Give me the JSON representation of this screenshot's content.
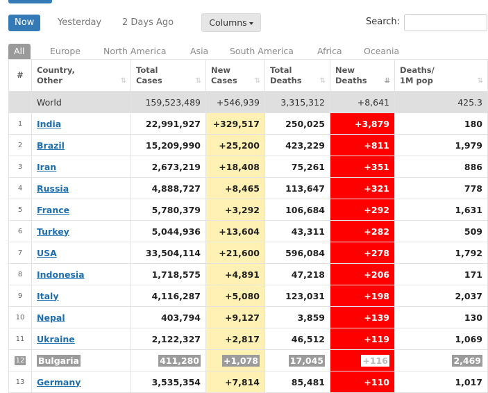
{
  "date_tabs": [
    "Now",
    "Yesterday",
    "2 Days Ago"
  ],
  "columns_button": "Columns",
  "search_label": "Search:",
  "search_value": "",
  "continent_tabs": [
    "All",
    "Europe",
    "North America",
    "Asia",
    "South America",
    "Africa",
    "Oceania"
  ],
  "headers": [
    "#",
    "Country,\nOther",
    "Total\nCases",
    "New\nCases",
    "Total\nDeaths",
    "New\nDeaths",
    "Deaths/\n1M pop"
  ],
  "world": {
    "name": "World",
    "total_cases": "159,523,489",
    "new_cases": "+546,939",
    "total_deaths": "3,315,312",
    "new_deaths": "+8,641",
    "deaths_per_1m": "425.3"
  },
  "rows": [
    {
      "rank": "1",
      "country": "India",
      "total_cases": "22,991,927",
      "new_cases": "+329,517",
      "total_deaths": "250,025",
      "new_deaths": "+3,879",
      "deaths_per_1m": "180"
    },
    {
      "rank": "2",
      "country": "Brazil",
      "total_cases": "15,209,990",
      "new_cases": "+25,200",
      "total_deaths": "423,229",
      "new_deaths": "+811",
      "deaths_per_1m": "1,979"
    },
    {
      "rank": "3",
      "country": "Iran",
      "total_cases": "2,673,219",
      "new_cases": "+18,408",
      "total_deaths": "75,261",
      "new_deaths": "+351",
      "deaths_per_1m": "886"
    },
    {
      "rank": "4",
      "country": "Russia",
      "total_cases": "4,888,727",
      "new_cases": "+8,465",
      "total_deaths": "113,647",
      "new_deaths": "+321",
      "deaths_per_1m": "778"
    },
    {
      "rank": "5",
      "country": "France",
      "total_cases": "5,780,379",
      "new_cases": "+3,292",
      "total_deaths": "106,684",
      "new_deaths": "+292",
      "deaths_per_1m": "1,631"
    },
    {
      "rank": "6",
      "country": "Turkey",
      "total_cases": "5,044,936",
      "new_cases": "+13,604",
      "total_deaths": "43,311",
      "new_deaths": "+282",
      "deaths_per_1m": "509"
    },
    {
      "rank": "7",
      "country": "USA",
      "total_cases": "33,504,114",
      "new_cases": "+21,600",
      "total_deaths": "596,084",
      "new_deaths": "+278",
      "deaths_per_1m": "1,792"
    },
    {
      "rank": "8",
      "country": "Indonesia",
      "total_cases": "1,718,575",
      "new_cases": "+4,891",
      "total_deaths": "47,218",
      "new_deaths": "+206",
      "deaths_per_1m": "171"
    },
    {
      "rank": "9",
      "country": "Italy",
      "total_cases": "4,116,287",
      "new_cases": "+5,080",
      "total_deaths": "123,031",
      "new_deaths": "+198",
      "deaths_per_1m": "2,037"
    },
    {
      "rank": "10",
      "country": "Nepal",
      "total_cases": "403,794",
      "new_cases": "+9,127",
      "total_deaths": "3,859",
      "new_deaths": "+139",
      "deaths_per_1m": "130"
    },
    {
      "rank": "11",
      "country": "Ukraine",
      "total_cases": "2,122,327",
      "new_cases": "+2,817",
      "total_deaths": "46,512",
      "new_deaths": "+119",
      "deaths_per_1m": "1,069"
    },
    {
      "rank": "12",
      "country": "Bulgaria",
      "total_cases": "411,280",
      "new_cases": "+1,078",
      "total_deaths": "17,045",
      "new_deaths": "+116",
      "deaths_per_1m": "2,469",
      "selected": true
    },
    {
      "rank": "13",
      "country": "Germany",
      "total_cases": "3,535,354",
      "new_cases": "+7,814",
      "total_deaths": "85,481",
      "new_deaths": "+110",
      "deaths_per_1m": "1,017"
    }
  ],
  "colors": {
    "primary": "#337ab7",
    "new_cases_bg": "#fff1b3",
    "new_deaths_bg": "#ff0000",
    "world_row_bg": "#dfdfdf",
    "link": "#1f6ead"
  }
}
